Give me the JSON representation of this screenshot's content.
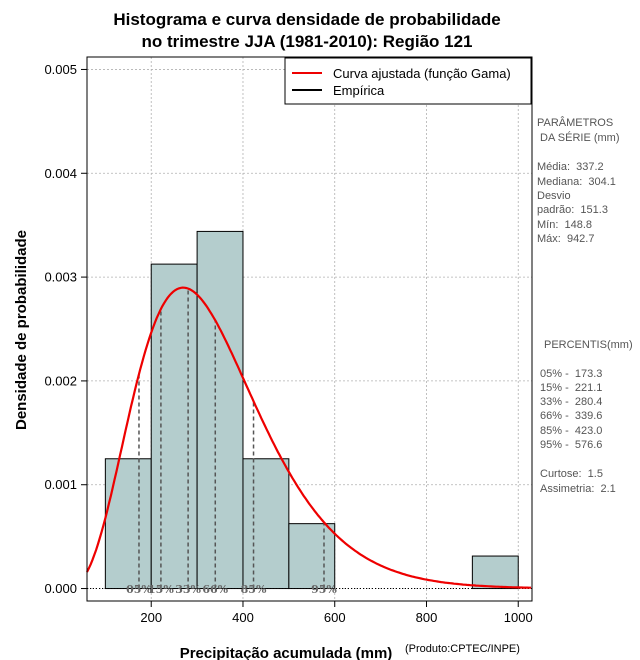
{
  "chart_data": {
    "type": "histogram",
    "title": [
      "Histograma e curva densidade de probabilidade",
      "no trimestre JJA (1981-2010): Região 121"
    ],
    "xlabel": "Precipitação acumulada (mm)",
    "ylabel": "Densidade de probabilidade",
    "source_note": "(Produto:CPTEC/INPE)",
    "xlim": [
      60,
      1030
    ],
    "ylim": [
      -0.00012,
      0.00512
    ],
    "x_ticks": [
      200,
      400,
      600,
      800,
      1000
    ],
    "x_tick_labels": [
      "200",
      "400",
      "600",
      "800",
      "1000"
    ],
    "y_ticks": [
      0.0,
      0.001,
      0.002,
      0.003,
      0.004,
      0.005
    ],
    "y_tick_labels": [
      "0.000",
      "0.001",
      "0.002",
      "0.003",
      "0.004",
      "0.005"
    ],
    "grid": true,
    "bins": [
      {
        "from": 100,
        "to": 200,
        "density": 0.00125
      },
      {
        "from": 200,
        "to": 300,
        "density": 0.003125
      },
      {
        "from": 300,
        "to": 400,
        "density": 0.00344
      },
      {
        "from": 400,
        "to": 500,
        "density": 0.00125
      },
      {
        "from": 500,
        "to": 600,
        "density": 0.000625
      },
      {
        "from": 600,
        "to": 700,
        "density": 0.0
      },
      {
        "from": 700,
        "to": 800,
        "density": 0.0
      },
      {
        "from": 800,
        "to": 900,
        "density": 0.0
      },
      {
        "from": 900,
        "to": 1000,
        "density": 0.000313
      }
    ],
    "bar_color": "#b4cdcd",
    "curve": {
      "name": "Curva ajustada (função Gama)",
      "color": "#ee0000",
      "distribution": "gamma",
      "shape": 5.0,
      "scale": 67.4
    },
    "empirical": {
      "name": "Empírica",
      "color": "#000000"
    },
    "legend_position": "top-right",
    "percentiles": [
      {
        "label": "05%",
        "value": 173.3
      },
      {
        "label": "15%",
        "value": 221.1
      },
      {
        "label": "33%",
        "value": 280.4
      },
      {
        "label": "66%",
        "value": 339.6
      },
      {
        "label": "85%",
        "value": 423.0
      },
      {
        "label": "95%",
        "value": 576.6
      }
    ]
  },
  "side_panel": {
    "params_title": [
      "PARÂMETROS",
      " DA SÉRIE (mm)"
    ],
    "params": [
      "Média:  337.2",
      "Mediana:  304.1",
      "Desvio",
      "padrão:  151.3",
      "Mín:  148.8",
      "Máx:  942.7"
    ],
    "percentis_title": "PERCENTIS(mm)",
    "percentis": [
      "05% -  173.3",
      "15% -  221.1",
      "33% -  280.4",
      "66% -  339.6",
      "85% -  423.0",
      "95% -  576.6"
    ],
    "extras": [
      "Curtose:  1.5",
      "Assimetria:  2.1"
    ]
  }
}
